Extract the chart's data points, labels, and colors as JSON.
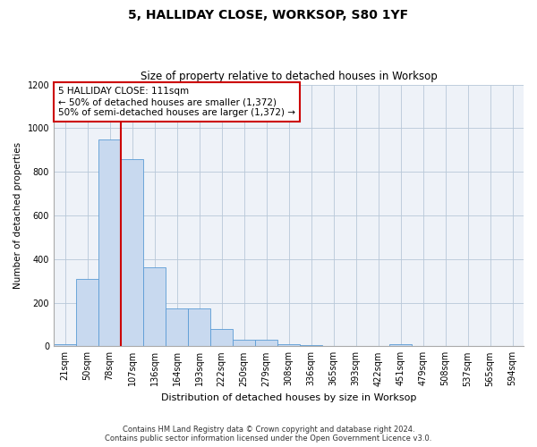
{
  "title1": "5, HALLIDAY CLOSE, WORKSOP, S80 1YF",
  "title2": "Size of property relative to detached houses in Worksop",
  "xlabel": "Distribution of detached houses by size in Worksop",
  "ylabel": "Number of detached properties",
  "categories": [
    "21sqm",
    "50sqm",
    "78sqm",
    "107sqm",
    "136sqm",
    "164sqm",
    "193sqm",
    "222sqm",
    "250sqm",
    "279sqm",
    "308sqm",
    "336sqm",
    "365sqm",
    "393sqm",
    "422sqm",
    "451sqm",
    "479sqm",
    "508sqm",
    "537sqm",
    "565sqm",
    "594sqm"
  ],
  "values": [
    10,
    310,
    950,
    860,
    360,
    175,
    175,
    80,
    30,
    30,
    10,
    5,
    0,
    0,
    0,
    10,
    0,
    0,
    0,
    0,
    0
  ],
  "bar_color": "#c8d9ef",
  "bar_edge_color": "#5b9bd5",
  "vline_color": "#cc0000",
  "vline_pos": 2.5,
  "annotation_text": "5 HALLIDAY CLOSE: 111sqm\n← 50% of detached houses are smaller (1,372)\n50% of semi-detached houses are larger (1,372) →",
  "annotation_box_facecolor": "#ffffff",
  "annotation_box_edgecolor": "#cc0000",
  "ylim": [
    0,
    1200
  ],
  "yticks": [
    0,
    200,
    400,
    600,
    800,
    1000,
    1200
  ],
  "footer1": "Contains HM Land Registry data © Crown copyright and database right 2024.",
  "footer2": "Contains public sector information licensed under the Open Government Licence v3.0.",
  "plot_bg_color": "#eef2f8",
  "fig_bg_color": "#ffffff",
  "title1_fontsize": 10,
  "title2_fontsize": 8.5,
  "xlabel_fontsize": 8,
  "ylabel_fontsize": 7.5,
  "tick_fontsize": 7,
  "annotation_fontsize": 7.5,
  "footer_fontsize": 6
}
